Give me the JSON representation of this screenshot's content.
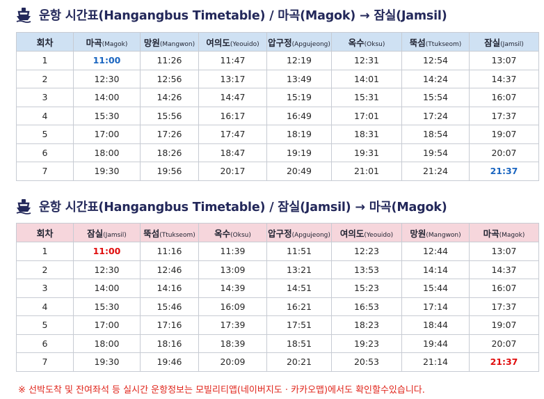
{
  "icon": "ferry-ship-icon",
  "colors": {
    "title": "#23285a",
    "upper_header_bg": "#cfe1f3",
    "lower_header_bg": "#f6d6dc",
    "highlight_blue": "#1a65c0",
    "highlight_red": "#e00d0d",
    "notice": "#e0251b"
  },
  "upper": {
    "title": "운항 시간표(Hangangbus Timetable) / 마곡(Magok) → 잠실(Jamsil)",
    "headers": [
      {
        "main": "회차",
        "sub": ""
      },
      {
        "main": "마곡",
        "sub": "(Magok)"
      },
      {
        "main": "망원",
        "sub": "(Mangwon)"
      },
      {
        "main": "여의도",
        "sub": "(Yeouido)"
      },
      {
        "main": "압구정",
        "sub": "(Apgujeong)"
      },
      {
        "main": "옥수",
        "sub": "(Oksu)"
      },
      {
        "main": "뚝섬",
        "sub": "(Ttukseom)"
      },
      {
        "main": "잠실",
        "sub": "(Jamsil)"
      }
    ],
    "rows": [
      [
        "1",
        "11:00",
        "11:26",
        "11:47",
        "12:19",
        "12:31",
        "12:54",
        "13:07"
      ],
      [
        "2",
        "12:30",
        "12:56",
        "13:17",
        "13:49",
        "14:01",
        "14:24",
        "14:37"
      ],
      [
        "3",
        "14:00",
        "14:26",
        "14:47",
        "15:19",
        "15:31",
        "15:54",
        "16:07"
      ],
      [
        "4",
        "15:30",
        "15:56",
        "16:17",
        "16:49",
        "17:01",
        "17:24",
        "17:37"
      ],
      [
        "5",
        "17:00",
        "17:26",
        "17:47",
        "18:19",
        "18:31",
        "18:54",
        "19:07"
      ],
      [
        "6",
        "18:00",
        "18:26",
        "18:47",
        "19:19",
        "19:31",
        "19:54",
        "20:07"
      ],
      [
        "7",
        "19:30",
        "19:56",
        "20:17",
        "20:49",
        "21:01",
        "21:24",
        "21:37"
      ]
    ]
  },
  "lower": {
    "title": "운항 시간표(Hangangbus Timetable) / 잠실(Jamsil) → 마곡(Magok)",
    "headers": [
      {
        "main": "회차",
        "sub": ""
      },
      {
        "main": "잠실",
        "sub": "(Jamsil)"
      },
      {
        "main": "뚝섬",
        "sub": "(Ttukseom)"
      },
      {
        "main": "옥수",
        "sub": "(Oksu)"
      },
      {
        "main": "압구정",
        "sub": "(Apgujeong)"
      },
      {
        "main": "여의도",
        "sub": "(Yeouido)"
      },
      {
        "main": "망원",
        "sub": "(Mangwon)"
      },
      {
        "main": "마곡",
        "sub": "(Magok)"
      }
    ],
    "rows": [
      [
        "1",
        "11:00",
        "11:16",
        "11:39",
        "11:51",
        "12:23",
        "12:44",
        "13:07"
      ],
      [
        "2",
        "12:30",
        "12:46",
        "13:09",
        "13:21",
        "13:53",
        "14:14",
        "14:37"
      ],
      [
        "3",
        "14:00",
        "14:16",
        "14:39",
        "14:51",
        "15:23",
        "15:44",
        "16:07"
      ],
      [
        "4",
        "15:30",
        "15:46",
        "16:09",
        "16:21",
        "16:53",
        "17:14",
        "17:37"
      ],
      [
        "5",
        "17:00",
        "17:16",
        "17:39",
        "17:51",
        "18:23",
        "18:44",
        "19:07"
      ],
      [
        "6",
        "18:00",
        "18:16",
        "18:39",
        "18:51",
        "19:23",
        "19:44",
        "20:07"
      ],
      [
        "7",
        "19:30",
        "19:46",
        "20:09",
        "20:21",
        "20:53",
        "21:14",
        "21:37"
      ]
    ]
  },
  "notice": "※ 선박도착 및 잔여좌석 등 실시간 운항정보는 모빌리티앱(네이버지도 · 카카오맵)에서도 확인할수있습니다."
}
